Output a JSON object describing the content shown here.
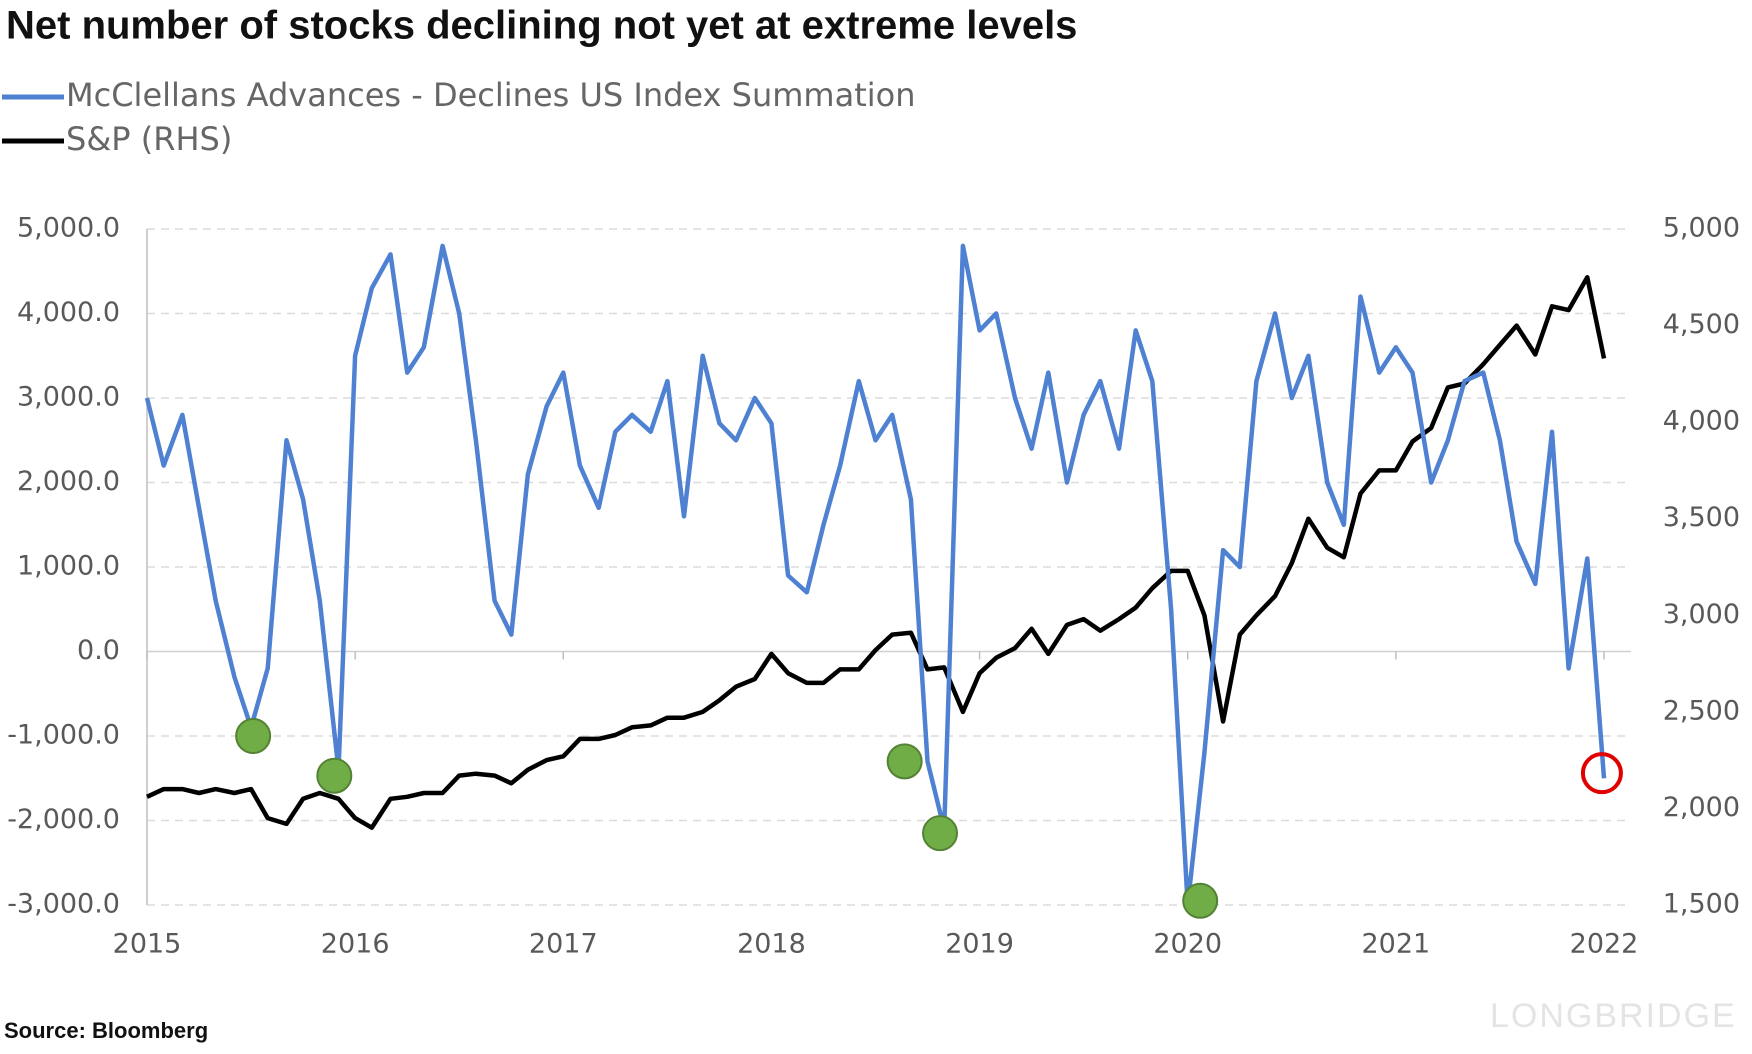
{
  "chart_data": {
    "type": "line",
    "title": "Net number of stocks declining not yet at extreme levels",
    "source": "Source: Bloomberg",
    "watermark": "LONGBRIDGE",
    "x": [
      2015.0,
      2015.08,
      2015.17,
      2015.25,
      2015.33,
      2015.42,
      2015.5,
      2015.58,
      2015.67,
      2015.75,
      2015.83,
      2015.92,
      2016.0,
      2016.08,
      2016.17,
      2016.25,
      2016.33,
      2016.42,
      2016.5,
      2016.58,
      2016.67,
      2016.75,
      2016.83,
      2016.92,
      2017.0,
      2017.08,
      2017.17,
      2017.25,
      2017.33,
      2017.42,
      2017.5,
      2017.58,
      2017.67,
      2017.75,
      2017.83,
      2017.92,
      2018.0,
      2018.08,
      2018.17,
      2018.25,
      2018.33,
      2018.42,
      2018.5,
      2018.58,
      2018.67,
      2018.75,
      2018.83,
      2018.92,
      2019.0,
      2019.08,
      2019.17,
      2019.25,
      2019.33,
      2019.42,
      2019.5,
      2019.58,
      2019.67,
      2019.75,
      2019.83,
      2019.92,
      2020.0,
      2020.08,
      2020.17,
      2020.25,
      2020.33,
      2020.42,
      2020.5,
      2020.58,
      2020.67,
      2020.75,
      2020.83,
      2020.92,
      2021.0,
      2021.08,
      2021.17,
      2021.25,
      2021.33,
      2021.42,
      2021.5,
      2021.58,
      2021.67,
      2021.75,
      2021.83,
      2021.92,
      2022.0
    ],
    "series": [
      {
        "name": "McClellans Advances - Declines US Index Summation",
        "color": "#4f81d2",
        "values": [
          3000,
          2200,
          2800,
          1700,
          600,
          -300,
          -900,
          -200,
          2500,
          1800,
          600,
          -1400,
          3500,
          4300,
          4700,
          3300,
          3600,
          4800,
          4000,
          2500,
          600,
          200,
          2100,
          2900,
          3300,
          2200,
          1700,
          2600,
          2800,
          2600,
          3200,
          1600,
          3500,
          2700,
          2500,
          3000,
          2700,
          900,
          700,
          1500,
          2200,
          3200,
          2500,
          2800,
          1800,
          -1300,
          -2100,
          4800,
          3800,
          4000,
          3000,
          2400,
          3300,
          2000,
          2800,
          3200,
          2400,
          3800,
          3200,
          500,
          -3000,
          -1200,
          1200,
          1000,
          3200,
          4000,
          3000,
          3500,
          2000,
          1500,
          4200,
          3300,
          3600,
          3300,
          2000,
          2500,
          3200,
          3300,
          2500,
          1300,
          800,
          2600,
          -200,
          1100,
          -1500
        ]
      },
      {
        "name": "S&P (RHS)",
        "color": "#000000",
        "axis": "y2",
        "values": [
          2060,
          2100,
          2100,
          2080,
          2100,
          2080,
          2100,
          1950,
          1920,
          2050,
          2080,
          2050,
          1950,
          1900,
          2050,
          2060,
          2080,
          2080,
          2170,
          2180,
          2170,
          2130,
          2200,
          2250,
          2270,
          2360,
          2360,
          2380,
          2420,
          2430,
          2470,
          2470,
          2500,
          2560,
          2630,
          2670,
          2800,
          2700,
          2650,
          2650,
          2720,
          2720,
          2820,
          2900,
          2910,
          2720,
          2730,
          2500,
          2700,
          2780,
          2830,
          2930,
          2800,
          2950,
          2980,
          2920,
          2980,
          3040,
          3140,
          3230,
          3230,
          3000,
          2450,
          2900,
          3000,
          3100,
          3270,
          3500,
          3350,
          3300,
          3630,
          3750,
          3750,
          3900,
          3970,
          4180,
          4200,
          4300,
          4400,
          4500,
          4350,
          4600,
          4580,
          4750,
          4330
        ]
      }
    ],
    "markers": {
      "color": "#70ad47",
      "points": [
        {
          "x": 2015.51,
          "y": -1000
        },
        {
          "x": 2015.9,
          "y": -1470
        },
        {
          "x": 2018.64,
          "y": -1300
        },
        {
          "x": 2018.81,
          "y": -2150
        },
        {
          "x": 2020.06,
          "y": -2950
        }
      ]
    },
    "highlight": {
      "color": "#e00000",
      "x": 2021.99,
      "y": -1440
    },
    "xlim": [
      2015,
      2022
    ],
    "xticks": [
      2015,
      2016,
      2017,
      2018,
      2019,
      2020,
      2021,
      2022
    ],
    "ylim": [
      -3000,
      5000
    ],
    "yticks": [
      {
        "value": -3000,
        "label": "-3,000.0"
      },
      {
        "value": -2000,
        "label": "-2,000.0"
      },
      {
        "value": -1000,
        "label": "-1,000.0"
      },
      {
        "value": 0,
        "label": "0.0"
      },
      {
        "value": 1000,
        "label": "1,000.0"
      },
      {
        "value": 2000,
        "label": "2,000.0"
      },
      {
        "value": 3000,
        "label": "3,000.0"
      },
      {
        "value": 4000,
        "label": "4,000.0"
      },
      {
        "value": 5000,
        "label": "5,000.0"
      }
    ],
    "y2lim": [
      1500,
      5000
    ],
    "y2ticks": [
      {
        "value": 1500,
        "label": "1,500"
      },
      {
        "value": 2000,
        "label": "2,000"
      },
      {
        "value": 2500,
        "label": "2,500"
      },
      {
        "value": 3000,
        "label": "3,000"
      },
      {
        "value": 3500,
        "label": "3,500"
      },
      {
        "value": 4000,
        "label": "4,000"
      },
      {
        "value": 4500,
        "label": "4,500"
      },
      {
        "value": 5000,
        "label": "5,000"
      }
    ],
    "grid": true
  }
}
